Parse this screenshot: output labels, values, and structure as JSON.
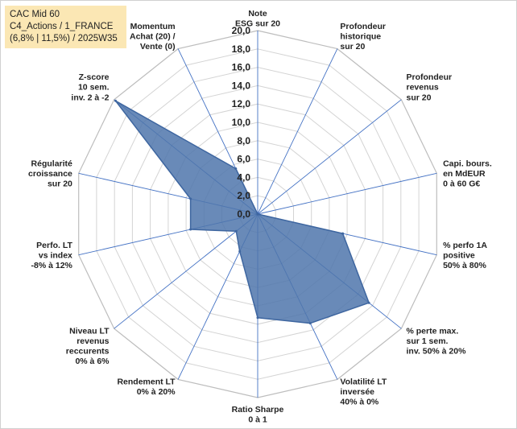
{
  "legend": {
    "line1": "CAC Mid 60",
    "line2": "C4_Actions / 1_FRANCE",
    "line3": "(6,8% | 11,5%) / 2025W35"
  },
  "chart_data": {
    "type": "radar",
    "rmin": 0,
    "rmax": 20,
    "ticks": [
      "0,0",
      "2,0",
      "4,0",
      "6,0",
      "8,0",
      "10,0",
      "12,0",
      "14,0",
      "16,0",
      "18,0",
      "20,0"
    ],
    "categories": [
      [
        "Note",
        "ESG sur 20"
      ],
      [
        "Profondeur",
        "historique",
        "sur 20"
      ],
      [
        "Profondeur",
        "revenus",
        "sur 20"
      ],
      [
        "Capi. bours.",
        "en MdEUR",
        "0 à 60 G€"
      ],
      [
        "% perfo 1A",
        "positive",
        "50% à 80%"
      ],
      [
        "% perte max.",
        "sur 1 sem.",
        "inv. 50% à 20%"
      ],
      [
        "Volatilité LT",
        "inversée",
        "40% à 0%"
      ],
      [
        "Ratio Sharpe",
        "0 à 1"
      ],
      [
        "Rendement LT",
        "0% à 20%"
      ],
      [
        "Niveau LT",
        "revenus",
        "reccurents",
        "0% à 6%"
      ],
      [
        "Perfo. LT",
        "vs index",
        "-8% à 12%"
      ],
      [
        "Régularité",
        "croissance",
        "sur 20"
      ],
      [
        "Z-score",
        "10 sem.",
        "inv. 2 à -2"
      ],
      [
        "Momentum",
        "Achat (20) /",
        "Vente (0)"
      ]
    ],
    "values": [
      0,
      0,
      0,
      0,
      9.5,
      15.5,
      13.2,
      11.3,
      4.5,
      3,
      7.5,
      7.5,
      19.8,
      5.5
    ],
    "colors": {
      "fill": "#4f76ab",
      "stroke": "#3e66a0",
      "grid": "#d4d4d4",
      "spoke": "#4472c4",
      "outer": "#bdbdbd"
    }
  }
}
